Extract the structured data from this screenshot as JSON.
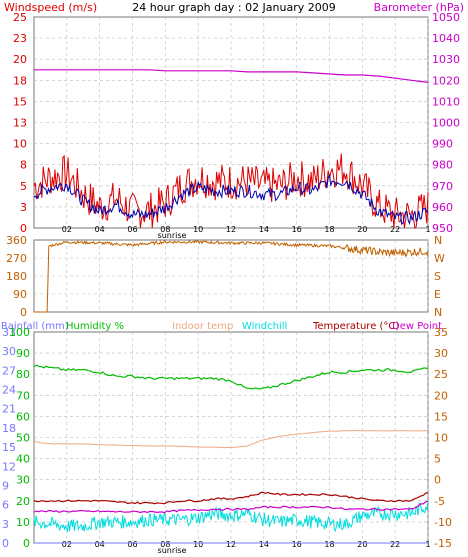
{
  "title": "24 hour graph day : 02 January 2009",
  "colors": {
    "windspeed": "#dd0000",
    "windavg": "#0000aa",
    "barometer": "#cc00cc",
    "direction": "#c06000",
    "rain": "#7777ff",
    "humidity": "#00bb00",
    "indoor": "#f0a880",
    "windchill": "#00dddd",
    "temperature": "#aa0000",
    "dewpoint": "#cc00cc",
    "grid": "#bbbbbb",
    "axisleft": "#444444"
  },
  "x_ticks": [
    "02",
    "04",
    "06",
    "08",
    "10",
    "12",
    "14",
    "16",
    "18",
    "20",
    "22",
    "1"
  ],
  "sunrise_label": "sunrise",
  "chart_data": [
    {
      "type": "line",
      "name": "wind-barometer",
      "title": "24 hour graph day : 02 January 2009",
      "left_label": "Windspeed (m/s)",
      "right_label": "Barometer (hPa)",
      "left_ticks": [
        "25",
        "23",
        "20",
        "18",
        "15",
        "13",
        "10",
        "8",
        "5",
        "3",
        "0"
      ],
      "right_ticks": [
        "1050",
        "1040",
        "1030",
        "1020",
        "1010",
        "1000",
        "990",
        "980",
        "970",
        "960",
        "950"
      ],
      "ylim_left": [
        0,
        25
      ],
      "ylim_right": [
        950,
        1050
      ],
      "x": [
        0,
        1,
        2,
        3,
        4,
        5,
        6,
        7,
        8,
        9,
        10,
        11,
        12,
        13,
        14,
        15,
        16,
        17,
        18,
        19,
        20,
        21,
        22,
        23,
        24
      ],
      "series": [
        {
          "name": "Windspeed (m/s)",
          "axis": "left",
          "values": [
            5,
            6,
            6.5,
            4,
            2.5,
            3.5,
            2,
            2,
            3,
            5,
            6,
            5.5,
            5.5,
            5.5,
            5,
            5,
            6,
            5.5,
            7,
            7,
            5,
            2.5,
            1.5,
            1.5,
            2.5
          ]
        },
        {
          "name": "Barometer (hPa)",
          "axis": "right",
          "values": [
            1025,
            1025,
            1025,
            1025,
            1025,
            1025,
            1025,
            1025,
            1024.5,
            1024.5,
            1024.5,
            1024.5,
            1024.5,
            1024,
            1024,
            1024,
            1024,
            1023.5,
            1023,
            1022.5,
            1022.5,
            1022,
            1021,
            1020,
            1019
          ]
        }
      ]
    },
    {
      "type": "line",
      "name": "wind-direction",
      "left_ticks": [
        "360",
        "270",
        "180",
        "90",
        "0"
      ],
      "right_ticks": [
        "N",
        "W",
        "S",
        "E",
        "N"
      ],
      "ylim": [
        0,
        360
      ],
      "x": [
        0,
        0.8,
        0.9,
        2,
        4,
        6,
        8,
        10,
        12,
        14,
        16,
        18,
        19,
        20,
        21,
        22,
        23,
        24
      ],
      "values": [
        0,
        0,
        330,
        350,
        345,
        335,
        350,
        350,
        345,
        345,
        335,
        330,
        320,
        310,
        300,
        295,
        300,
        305
      ]
    },
    {
      "type": "line",
      "name": "temperature-humidity",
      "labels": {
        "rain": "Rainfall (mm)",
        "humidity": "Humidity %",
        "indoor": "Indoor temp",
        "windchill": "Windchill",
        "temperature": "Temperature (°C)",
        "dewpoint": "Dew Point"
      },
      "rain_ticks": [
        "33",
        "30",
        "27",
        "24",
        "21",
        "18",
        "15",
        "12",
        "9",
        "6",
        "3",
        "0"
      ],
      "humidity_ticks": [
        "100",
        "90",
        "80",
        "70",
        "60",
        "50",
        "40",
        "30",
        "20",
        "10",
        "0"
      ],
      "temp_ticks": [
        "35",
        "30",
        "25",
        "20",
        "15",
        "10",
        "5",
        "0",
        "-5",
        "-10",
        "-15"
      ],
      "ylim_rain": [
        0,
        33
      ],
      "ylim_humidity": [
        0,
        100
      ],
      "ylim_temp": [
        -15,
        35
      ],
      "x": [
        0,
        1,
        2,
        3,
        4,
        5,
        6,
        7,
        8,
        9,
        10,
        11,
        12,
        13,
        14,
        15,
        16,
        17,
        18,
        19,
        20,
        21,
        22,
        23,
        24
      ],
      "series": [
        {
          "name": "Rainfall (mm)",
          "axis": "rain",
          "values": [
            0,
            0,
            0,
            0,
            0,
            0,
            0,
            0,
            0,
            0,
            0,
            0,
            0,
            0,
            0,
            0,
            0,
            0,
            0,
            0,
            0,
            0,
            0,
            0,
            0
          ]
        },
        {
          "name": "Humidity %",
          "axis": "humidity",
          "values": [
            84,
            83,
            82,
            82,
            81,
            79,
            79,
            78,
            78,
            78,
            78,
            78,
            77,
            73,
            73,
            75,
            77,
            79,
            81,
            81,
            82,
            82,
            82,
            81,
            83
          ]
        },
        {
          "name": "Indoor temp",
          "axis": "temp",
          "values": [
            9,
            8.5,
            8.5,
            8.5,
            8.3,
            8.2,
            8.1,
            8.0,
            8.0,
            7.9,
            7.8,
            7.7,
            7.6,
            8,
            9.5,
            10.3,
            10.8,
            11.2,
            11.5,
            11.6,
            11.6,
            11.6,
            11.6,
            11.6,
            11.6
          ]
        },
        {
          "name": "Windchill",
          "axis": "temp",
          "values": [
            -10,
            -10.5,
            -11,
            -11,
            -10,
            -10,
            -10,
            -9.5,
            -9.5,
            -9.5,
            -9,
            -8,
            -8.5,
            -8,
            -9.5,
            -10,
            -9.5,
            -10,
            -10.5,
            -10.5,
            -8.5,
            -8,
            -8,
            -8,
            -6
          ]
        },
        {
          "name": "Temperature (°C)",
          "axis": "temp",
          "values": [
            -5,
            -5,
            -5,
            -5,
            -5,
            -5.3,
            -5.5,
            -5.5,
            -5.5,
            -5,
            -5,
            -4.5,
            -4.5,
            -4,
            -3,
            -3.5,
            -3.5,
            -3.5,
            -3.5,
            -4,
            -4.5,
            -5,
            -5,
            -5,
            -3
          ]
        },
        {
          "name": "Dew Point",
          "axis": "temp",
          "values": [
            -7.5,
            -7.5,
            -7.5,
            -7.5,
            -7.5,
            -7.6,
            -7.6,
            -7.6,
            -7.6,
            -7.3,
            -7.2,
            -7,
            -7,
            -7,
            -6.5,
            -6.5,
            -6.5,
            -6.5,
            -6.5,
            -7,
            -7,
            -7,
            -7,
            -7,
            -5
          ]
        }
      ]
    }
  ]
}
